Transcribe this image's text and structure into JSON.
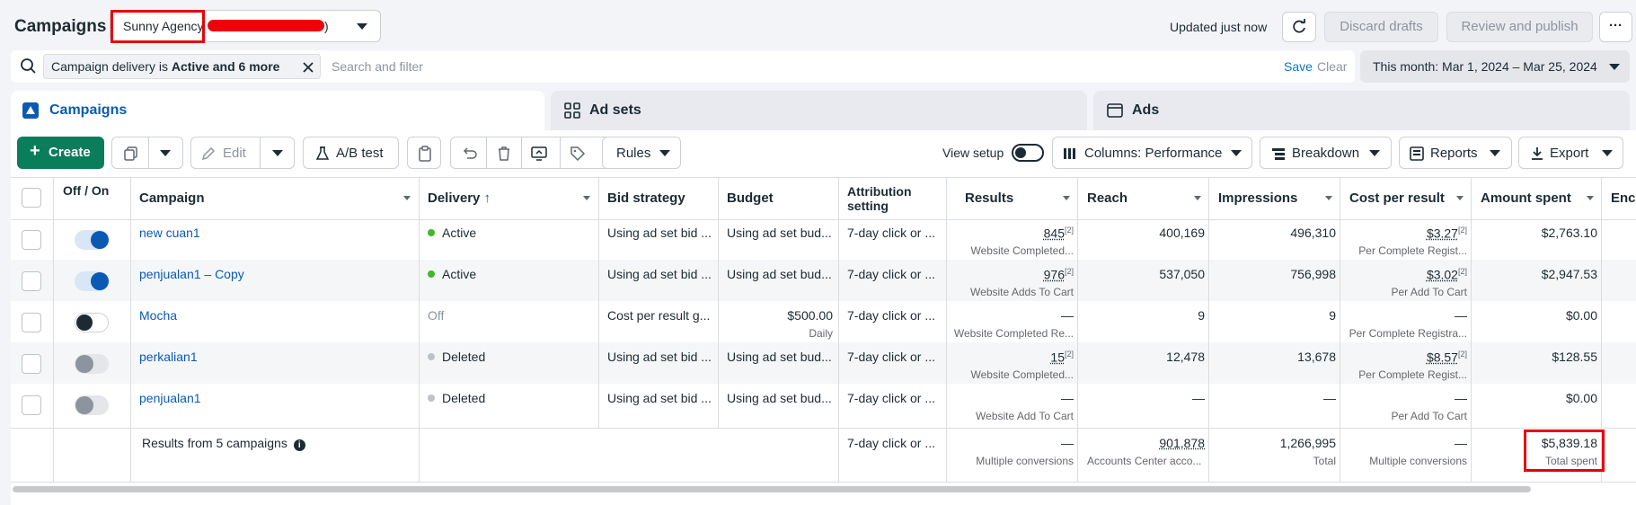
{
  "header": {
    "title": "Campaigns",
    "account_name": "Sunny Agency",
    "account_suffix": "(",
    "account_close": ")",
    "updated_text": "Updated just now",
    "discard_label": "Discard drafts",
    "review_label": "Review and publish",
    "more_label": "···"
  },
  "filter": {
    "chip_prefix": "Campaign delivery is ",
    "chip_value": "Active and 6 more",
    "search_placeholder": "Search and filter",
    "save_label": "Save",
    "clear_label": "Clear",
    "date_range": "This month: Mar 1, 2024 – Mar 25, 2024"
  },
  "tabs": [
    {
      "label": "Campaigns"
    },
    {
      "label": "Ad sets"
    },
    {
      "label": "Ads"
    }
  ],
  "toolbar": {
    "create_label": "Create",
    "edit_label": "Edit",
    "ab_test_label": "A/B test",
    "rules_label": "Rules",
    "view_setup_label": "View setup",
    "columns_label": "Columns: Performance",
    "breakdown_label": "Breakdown",
    "reports_label": "Reports",
    "export_label": "Export"
  },
  "columns": {
    "off_on": "Off / On",
    "campaign": "Campaign",
    "delivery": "Delivery",
    "bid_strategy": "Bid strategy",
    "budget": "Budget",
    "attribution": "Attribution setting",
    "results": "Results",
    "reach": "Reach",
    "impressions": "Impressions",
    "cost_per_result": "Cost per result",
    "amount_spent": "Amount spent",
    "ends": "Enc"
  },
  "rows": [
    {
      "name": "new cuan1",
      "on": true,
      "delivery": "Active",
      "delivery_color": "#42b72a",
      "bid": "Using ad set bid ...",
      "budget": "Using ad set bud...",
      "budget_sub": "",
      "attribution": "7-day click or ...",
      "results": "845",
      "results_sup": "[2]",
      "results_sub": "Website Completed...",
      "reach": "400,169",
      "impressions": "496,310",
      "cpr": "$3.27",
      "cpr_sup": "[2]",
      "cpr_sub": "Per Complete Regist...",
      "spent": "$2,763.10"
    },
    {
      "name": "penjualan1 – Copy",
      "on": true,
      "delivery": "Active",
      "delivery_color": "#42b72a",
      "bid": "Using ad set bid ...",
      "budget": "Using ad set bud...",
      "budget_sub": "",
      "attribution": "7-day click or ...",
      "results": "976",
      "results_sup": "[2]",
      "results_sub": "Website Adds To Cart",
      "reach": "537,050",
      "impressions": "756,998",
      "cpr": "$3.02",
      "cpr_sup": "[2]",
      "cpr_sub": "Per Add To Cart",
      "spent": "$2,947.53"
    },
    {
      "name": "Mocha",
      "on": false,
      "delivery": "Off",
      "delivery_color": "",
      "bid": "Cost per result g...",
      "budget": "$500.00",
      "budget_sub": "Daily",
      "attribution": "7-day click or ...",
      "results": "—",
      "results_sup": "",
      "results_sub": "Website Completed Re...",
      "reach": "9",
      "impressions": "9",
      "cpr": "—",
      "cpr_sup": "",
      "cpr_sub": "Per Complete Registra...",
      "spent": "$0.00"
    },
    {
      "name": "perkalian1",
      "on": false,
      "deleted": true,
      "delivery": "Deleted",
      "delivery_color": "#bec3c9",
      "bid": "Using ad set bid ...",
      "budget": "Using ad set bud...",
      "budget_sub": "",
      "attribution": "7-day click or ...",
      "results": "15",
      "results_sup": "[2]",
      "results_sub": "Website Completed...",
      "reach": "12,478",
      "impressions": "13,678",
      "cpr": "$8.57",
      "cpr_sup": "[2]",
      "cpr_sub": "Per Complete Regist...",
      "spent": "$128.55"
    },
    {
      "name": "penjualan1",
      "on": false,
      "deleted": true,
      "delivery": "Deleted",
      "delivery_color": "#bec3c9",
      "bid": "Using ad set bid ...",
      "budget": "Using ad set bud...",
      "budget_sub": "",
      "attribution": "7-day click or ...",
      "results": "—",
      "results_sup": "",
      "results_sub": "Website Add To Cart",
      "reach": "—",
      "impressions": "—",
      "cpr": "—",
      "cpr_sup": "",
      "cpr_sub": "Per Add To Cart",
      "spent": "$0.00"
    }
  ],
  "totals": {
    "label": "Results from 5 campaigns",
    "attribution": "7-day click or ...",
    "results": "—",
    "results_sub": "Multiple conversions",
    "reach": "901,878",
    "reach_sub": "Accounts Center acco...",
    "impressions": "1,266,995",
    "impressions_sub": "Total",
    "cpr": "—",
    "cpr_sub": "Multiple conversions",
    "spent": "$5,839.18",
    "spent_sub": "Total spent"
  },
  "colors": {
    "accent": "#0a5ab4",
    "create_green": "#0a7d5a",
    "highlight": "#e8000a"
  }
}
